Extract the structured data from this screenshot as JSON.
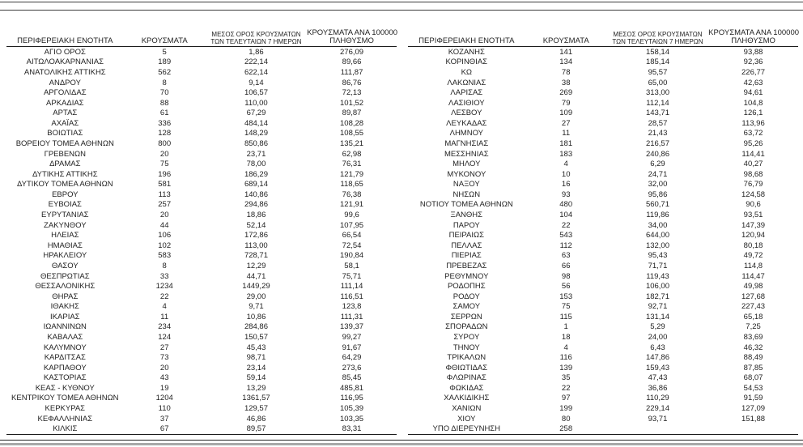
{
  "table": {
    "headers": {
      "region": "ΠΕΡΙΦΕΡΕΙΑΚΗ ΕΝΟΤΗΤΑ",
      "cases": "ΚΡΟΥΣΜΑΤΑ",
      "avg7_line1": "ΜΕΣΟΣ ΟΡΟΣ ΚΡΟΥΣΜΑΤΩΝ",
      "avg7_line2": "ΤΩΝ ΤΕΛΕΥΤΑΙΩΝ 7 ΗΜΕΡΩΝ",
      "per100k_line1": "ΚΡΟΥΣΜΑΤΑ ΑΝΑ 100000",
      "per100k_line2": "ΠΛΗΘΥΣΜΟ"
    },
    "left_rows": [
      [
        "ΑΓΙΟ ΟΡΟΣ",
        "5",
        "1,86",
        "276,09"
      ],
      [
        "ΑΙΤΩΛΟΑΚΑΡΝΑΝΙΑΣ",
        "189",
        "222,14",
        "89,66"
      ],
      [
        "ΑΝΑΤΟΛΙΚΗΣ ΑΤΤΙΚΗΣ",
        "562",
        "622,14",
        "111,87"
      ],
      [
        "ΑΝΔΡΟΥ",
        "8",
        "9,14",
        "86,76"
      ],
      [
        "ΑΡΓΟΛΙΔΑΣ",
        "70",
        "106,57",
        "72,13"
      ],
      [
        "ΑΡΚΑΔΙΑΣ",
        "88",
        "110,00",
        "101,52"
      ],
      [
        "ΑΡΤΑΣ",
        "61",
        "67,29",
        "89,87"
      ],
      [
        "ΑΧΑΪΑΣ",
        "336",
        "484,14",
        "108,28"
      ],
      [
        "ΒΟΙΩΤΙΑΣ",
        "128",
        "148,29",
        "108,55"
      ],
      [
        "ΒΟΡΕΙΟΥ ΤΟΜΕΑ ΑΘΗΝΩΝ",
        "800",
        "850,86",
        "135,21"
      ],
      [
        "ΓΡΕΒΕΝΩΝ",
        "20",
        "23,71",
        "62,98"
      ],
      [
        "ΔΡΑΜΑΣ",
        "75",
        "78,00",
        "76,31"
      ],
      [
        "ΔΥΤΙΚΗΣ ΑΤΤΙΚΗΣ",
        "196",
        "186,29",
        "121,79"
      ],
      [
        "ΔΥΤΙΚΟΥ ΤΟΜΕΑ ΑΘΗΝΩΝ",
        "581",
        "689,14",
        "118,65"
      ],
      [
        "ΕΒΡΟΥ",
        "113",
        "140,86",
        "76,38"
      ],
      [
        "ΕΥΒΟΙΑΣ",
        "257",
        "294,86",
        "121,91"
      ],
      [
        "ΕΥΡΥΤΑΝΙΑΣ",
        "20",
        "18,86",
        "99,6"
      ],
      [
        "ΖΑΚΥΝΘΟΥ",
        "44",
        "52,14",
        "107,95"
      ],
      [
        "ΗΛΕΙΑΣ",
        "106",
        "172,86",
        "66,54"
      ],
      [
        "ΗΜΑΘΙΑΣ",
        "102",
        "113,00",
        "72,54"
      ],
      [
        "ΗΡΑΚΛΕΙΟΥ",
        "583",
        "728,71",
        "190,84"
      ],
      [
        "ΘΑΣΟΥ",
        "8",
        "12,29",
        "58,1"
      ],
      [
        "ΘΕΣΠΡΩΤΙΑΣ",
        "33",
        "44,71",
        "75,71"
      ],
      [
        "ΘΕΣΣΑΛΟΝΙΚΗΣ",
        "1234",
        "1449,29",
        "111,14"
      ],
      [
        "ΘΗΡΑΣ",
        "22",
        "29,00",
        "116,51"
      ],
      [
        "ΙΘΑΚΗΣ",
        "4",
        "9,71",
        "123,8"
      ],
      [
        "ΙΚΑΡΙΑΣ",
        "11",
        "10,86",
        "111,31"
      ],
      [
        "ΙΩΑΝΝΙΝΩΝ",
        "234",
        "284,86",
        "139,37"
      ],
      [
        "ΚΑΒΑΛΑΣ",
        "124",
        "150,57",
        "99,27"
      ],
      [
        "ΚΑΛΥΜΝΟΥ",
        "27",
        "45,43",
        "91,67"
      ],
      [
        "ΚΑΡΔΙΤΣΑΣ",
        "73",
        "98,71",
        "64,29"
      ],
      [
        "ΚΑΡΠΑΘΟΥ",
        "20",
        "23,14",
        "273,6"
      ],
      [
        "ΚΑΣΤΟΡΙΑΣ",
        "43",
        "59,14",
        "85,45"
      ],
      [
        "ΚΕΑΣ - ΚΥΘΝΟΥ",
        "19",
        "13,29",
        "485,81"
      ],
      [
        "ΚΕΝΤΡΙΚΟΥ ΤΟΜΕΑ ΑΘΗΝΩΝ",
        "1204",
        "1361,57",
        "116,95"
      ],
      [
        "ΚΕΡΚΥΡΑΣ",
        "110",
        "129,57",
        "105,39"
      ],
      [
        "ΚΕΦΑΛΛΗΝΙΑΣ",
        "37",
        "46,86",
        "103,35"
      ],
      [
        "ΚΙΛΚΙΣ",
        "67",
        "89,57",
        "83,31"
      ]
    ],
    "right_rows": [
      [
        "ΚΟΖΑΝΗΣ",
        "141",
        "158,14",
        "93,88"
      ],
      [
        "ΚΟΡΙΝΘΙΑΣ",
        "134",
        "185,14",
        "92,36"
      ],
      [
        "ΚΩ",
        "78",
        "95,57",
        "226,77"
      ],
      [
        "ΛΑΚΩΝΙΑΣ",
        "38",
        "65,00",
        "42,63"
      ],
      [
        "ΛΑΡΙΣΑΣ",
        "269",
        "313,00",
        "94,61"
      ],
      [
        "ΛΑΣΙΘΙΟΥ",
        "79",
        "112,14",
        "104,8"
      ],
      [
        "ΛΕΣΒΟΥ",
        "109",
        "143,71",
        "126,1"
      ],
      [
        "ΛΕΥΚΑΔΑΣ",
        "27",
        "28,57",
        "113,96"
      ],
      [
        "ΛΗΜΝΟΥ",
        "11",
        "21,43",
        "63,72"
      ],
      [
        "ΜΑΓΝΗΣΙΑΣ",
        "181",
        "216,57",
        "95,26"
      ],
      [
        "ΜΕΣΣΗΝΙΑΣ",
        "183",
        "240,86",
        "114,41"
      ],
      [
        "ΜΗΛΟΥ",
        "4",
        "6,29",
        "40,27"
      ],
      [
        "ΜΥΚΟΝΟΥ",
        "10",
        "24,71",
        "98,68"
      ],
      [
        "ΝΑΞΟΥ",
        "16",
        "32,00",
        "76,79"
      ],
      [
        "ΝΗΣΩΝ",
        "93",
        "95,86",
        "124,58"
      ],
      [
        "ΝΟΤΙΟΥ ΤΟΜΕΑ ΑΘΗΝΩΝ",
        "480",
        "560,71",
        "90,6"
      ],
      [
        "ΞΑΝΘΗΣ",
        "104",
        "119,86",
        "93,51"
      ],
      [
        "ΠΑΡΟΥ",
        "22",
        "34,00",
        "147,39"
      ],
      [
        "ΠΕΙΡΑΙΩΣ",
        "543",
        "644,00",
        "120,94"
      ],
      [
        "ΠΕΛΛΑΣ",
        "112",
        "132,00",
        "80,18"
      ],
      [
        "ΠΙΕΡΙΑΣ",
        "63",
        "95,43",
        "49,72"
      ],
      [
        "ΠΡΕΒΕΖΑΣ",
        "66",
        "71,71",
        "114,8"
      ],
      [
        "ΡΕΘΥΜΝΟΥ",
        "98",
        "119,43",
        "114,47"
      ],
      [
        "ΡΟΔΟΠΗΣ",
        "56",
        "106,00",
        "49,98"
      ],
      [
        "ΡΟΔΟΥ",
        "153",
        "182,71",
        "127,68"
      ],
      [
        "ΣΑΜΟΥ",
        "75",
        "92,71",
        "227,43"
      ],
      [
        "ΣΕΡΡΩΝ",
        "115",
        "131,14",
        "65,18"
      ],
      [
        "ΣΠΟΡΑΔΩΝ",
        "1",
        "5,29",
        "7,25"
      ],
      [
        "ΣΥΡΟΥ",
        "18",
        "24,00",
        "83,69"
      ],
      [
        "ΤΗΝΟΥ",
        "4",
        "6,43",
        "46,32"
      ],
      [
        "ΤΡΙΚΑΛΩΝ",
        "116",
        "147,86",
        "88,49"
      ],
      [
        "ΦΘΙΩΤΙΔΑΣ",
        "139",
        "159,43",
        "87,85"
      ],
      [
        "ΦΛΩΡΙΝΑΣ",
        "35",
        "47,43",
        "68,07"
      ],
      [
        "ΦΩΚΙΔΑΣ",
        "22",
        "36,86",
        "54,53"
      ],
      [
        "ΧΑΛΚΙΔΙΚΗΣ",
        "97",
        "110,29",
        "91,59"
      ],
      [
        "ΧΑΝΙΩΝ",
        "199",
        "229,14",
        "127,09"
      ],
      [
        "ΧΙΟΥ",
        "80",
        "93,71",
        "151,88"
      ],
      [
        "ΥΠΟ ΔΙΕΡΕΥΝΗΣΗ",
        "258",
        "",
        ""
      ]
    ]
  }
}
